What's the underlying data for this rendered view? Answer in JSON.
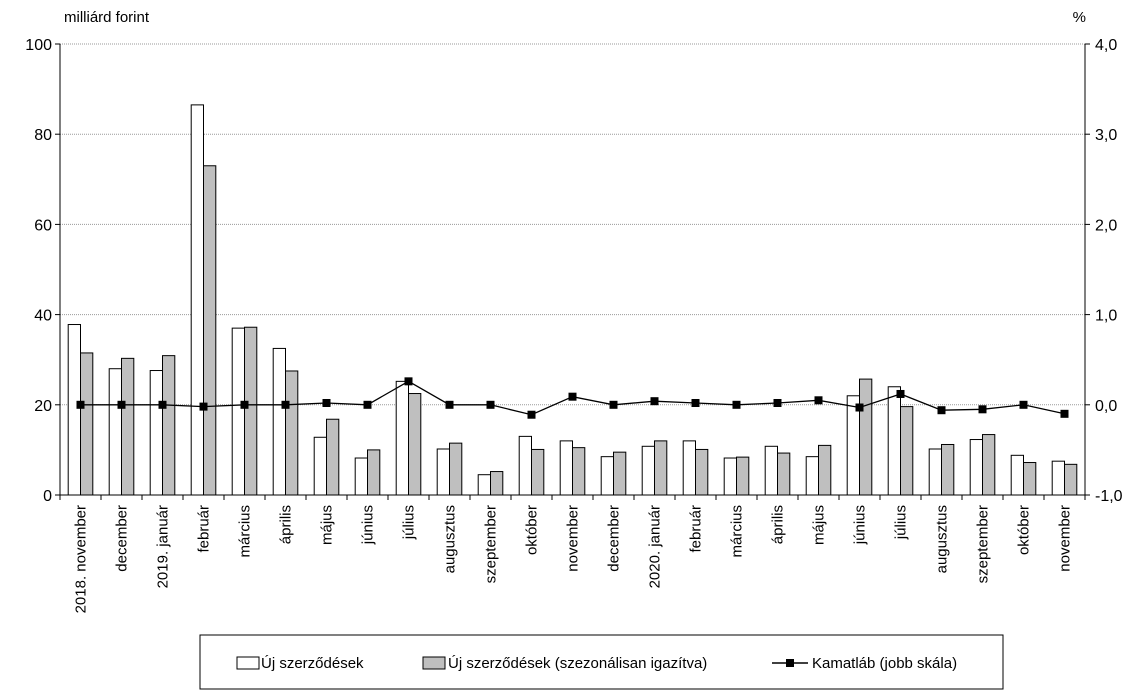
{
  "chart_data": {
    "type": "bar",
    "left_unit": "milliárd forint",
    "right_unit": "%",
    "left_ylim": [
      0,
      100
    ],
    "right_ylim": [
      -1.0,
      4.0
    ],
    "left_ticks": [
      "0",
      "20",
      "40",
      "60",
      "80",
      "100"
    ],
    "right_ticks": [
      "-1,0",
      "0,0",
      "1,0",
      "2,0",
      "3,0",
      "4,0"
    ],
    "grid": true,
    "legend_position": "bottom",
    "categories": [
      "2018. november",
      "december",
      "2019. január",
      "február",
      "március",
      "április",
      "május",
      "június",
      "július",
      "augusztus",
      "szeptember",
      "október",
      "november",
      "december",
      "2020. január",
      "február",
      "március",
      "április",
      "május",
      "június",
      "július",
      "augusztus",
      "szeptember",
      "október",
      "november"
    ],
    "series": [
      {
        "name": "Új szerződések",
        "type": "bar",
        "axis": "left",
        "color": "#ffffff",
        "values": [
          37.8,
          28.0,
          27.6,
          86.5,
          37.0,
          32.5,
          12.8,
          8.2,
          25.2,
          10.2,
          4.5,
          13.0,
          12.0,
          8.5,
          10.8,
          12.0,
          8.2,
          10.8,
          8.5,
          22.0,
          24.0,
          10.2,
          12.3,
          8.8,
          7.5
        ]
      },
      {
        "name": "Új szerződések (szezonálisan igazítva)",
        "type": "bar",
        "axis": "left",
        "color": "#bfbfbf",
        "values": [
          31.5,
          30.3,
          30.9,
          73.0,
          37.2,
          27.5,
          16.8,
          10.0,
          22.5,
          11.5,
          5.2,
          10.1,
          10.5,
          9.5,
          12.0,
          10.1,
          8.4,
          9.3,
          11.0,
          25.7,
          19.6,
          11.2,
          13.4,
          7.2,
          6.8
        ]
      },
      {
        "name": "Kamatláb (jobb skála)",
        "type": "line",
        "axis": "right",
        "color": "#000000",
        "values": [
          0.0,
          0.0,
          0.0,
          -0.02,
          0.0,
          0.0,
          0.02,
          0.0,
          0.26,
          0.0,
          0.0,
          -0.11,
          0.09,
          0.0,
          0.04,
          0.02,
          0.0,
          0.02,
          0.05,
          -0.03,
          0.12,
          -0.06,
          -0.05,
          0.0,
          -0.1
        ]
      }
    ]
  }
}
